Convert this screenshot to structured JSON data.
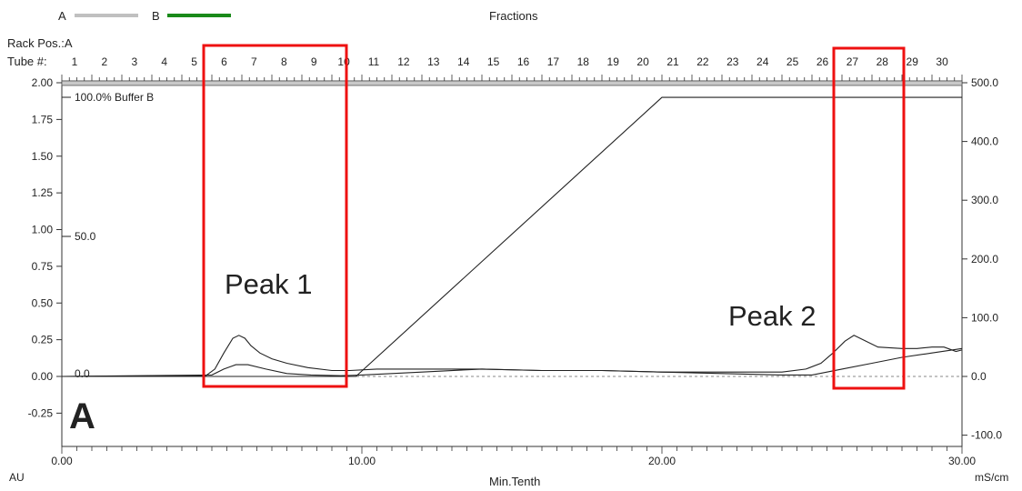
{
  "header": {
    "legend_a_label": "A",
    "legend_b_label": "B",
    "fractions_label": "Fractions",
    "rack_pos_label": "Rack Pos.:A",
    "tube_label": "Tube #:",
    "tube_numbers": [
      "1",
      "2",
      "3",
      "4",
      "5",
      "6",
      "7",
      "8",
      "9",
      "10",
      "11",
      "12",
      "13",
      "14",
      "15",
      "16",
      "17",
      "18",
      "19",
      "20",
      "21",
      "22",
      "23",
      "24",
      "25",
      "26",
      "27",
      "28",
      "29",
      "30"
    ]
  },
  "colors": {
    "legend_a": "#c0c0c0",
    "legend_b": "#1a8a1a",
    "highlight_box": "#ee1111",
    "trace": "#222222"
  },
  "annotations": {
    "buffer_label": "100.0% Buffer B",
    "mid_label": "50.0",
    "zero_label": "0.0",
    "peak1": "Peak 1",
    "peak2": "Peak 2",
    "panel_letter": "A"
  },
  "chart_data": {
    "type": "line",
    "xlabel": "Min.Tenth",
    "ylabel_left": "AU",
    "ylabel_right": "mS/cm",
    "xlim": [
      0,
      30
    ],
    "ylim_left": [
      -0.35,
      2.0
    ],
    "ylim_right": [
      -100,
      500
    ],
    "x_ticks": [
      "0.00",
      "10.00",
      "20.00",
      "30.00"
    ],
    "y_left_ticks": [
      "2.00",
      "1.75",
      "1.50",
      "1.25",
      "1.00",
      "0.75",
      "0.50",
      "0.25",
      "0.00",
      "-0.25"
    ],
    "y_right_ticks": [
      "500.0",
      "400.0",
      "300.0",
      "200.0",
      "100.0",
      "0.0",
      "-100.0"
    ],
    "series": [
      {
        "axis": "left",
        "x": [
          0,
          4.8,
          5.1,
          5.4,
          5.7,
          5.9,
          6.1,
          6.3,
          6.6,
          7.0,
          7.5,
          8.2,
          9.0,
          9.6,
          10.5,
          12,
          14,
          16,
          18,
          20,
          22,
          24,
          24.8,
          25.3,
          25.7,
          26.1,
          26.4,
          26.7,
          27.2,
          28.0,
          28.5,
          29.0,
          29.4,
          29.8,
          30
        ],
        "y": [
          0.0,
          0.005,
          0.05,
          0.16,
          0.26,
          0.28,
          0.26,
          0.21,
          0.16,
          0.12,
          0.09,
          0.06,
          0.04,
          0.04,
          0.05,
          0.05,
          0.05,
          0.04,
          0.04,
          0.03,
          0.03,
          0.03,
          0.05,
          0.09,
          0.16,
          0.24,
          0.28,
          0.25,
          0.2,
          0.19,
          0.19,
          0.2,
          0.2,
          0.17,
          0.18
        ]
      },
      {
        "axis": "left",
        "x": [
          0,
          5.0,
          5.4,
          5.8,
          6.2,
          6.8,
          7.5,
          8.3,
          9.3,
          10.0,
          12,
          14,
          16,
          18,
          20,
          22,
          24,
          25,
          26,
          27,
          28,
          29,
          30
        ],
        "y": [
          0.0,
          0.01,
          0.05,
          0.08,
          0.08,
          0.05,
          0.02,
          0.01,
          0.005,
          0.01,
          0.03,
          0.05,
          0.04,
          0.04,
          0.03,
          0.02,
          0.01,
          0.01,
          0.05,
          0.09,
          0.13,
          0.16,
          0.19
        ]
      },
      {
        "name": "100.0% Buffer B",
        "axis": "right",
        "x": [
          0,
          9.8,
          20.0,
          30.0
        ],
        "y": [
          0,
          0,
          475,
          475
        ]
      }
    ]
  }
}
